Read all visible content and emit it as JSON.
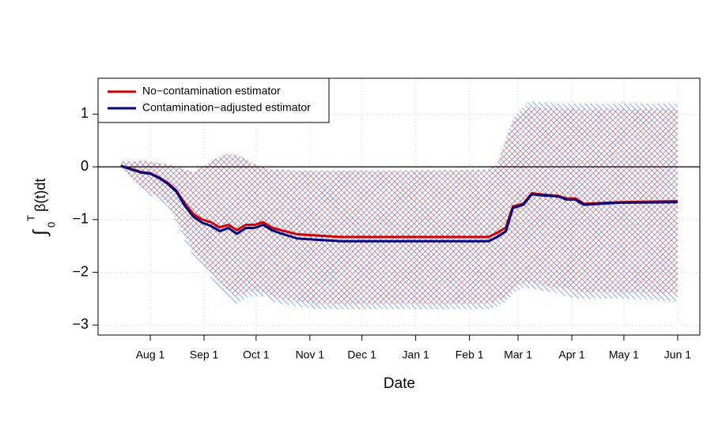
{
  "chart_data": {
    "type": "line",
    "xlabel": "Date",
    "ylabel": [
      "∫",
      "0",
      "T",
      "β(t)dt"
    ],
    "x": [
      -17,
      -10,
      -5,
      0,
      5,
      10,
      15,
      20,
      25,
      30,
      35,
      40,
      45,
      50,
      55,
      60,
      65,
      70,
      75,
      85,
      95,
      110,
      140,
      180,
      195,
      200,
      205,
      209,
      215,
      220,
      225,
      235,
      240,
      245,
      250,
      270,
      304
    ],
    "series": [
      {
        "name": "No−contamination estimator",
        "color": "#cc0000",
        "band_color": "#e03a3a",
        "values": [
          0.02,
          -0.05,
          -0.1,
          -0.12,
          -0.2,
          -0.3,
          -0.45,
          -0.7,
          -0.9,
          -1.0,
          -1.05,
          -1.15,
          -1.1,
          -1.2,
          -1.1,
          -1.1,
          -1.05,
          -1.15,
          -1.2,
          -1.28,
          -1.3,
          -1.33,
          -1.33,
          -1.33,
          -1.33,
          -1.25,
          -1.15,
          -0.75,
          -0.7,
          -0.5,
          -0.52,
          -0.55,
          -0.6,
          -0.6,
          -0.7,
          -0.67,
          -0.65
        ],
        "upper": [
          0.1,
          0.1,
          0.12,
          0.1,
          0.08,
          0.05,
          0.0,
          -0.05,
          -0.1,
          0.0,
          0.1,
          0.2,
          0.25,
          0.22,
          0.15,
          0.05,
          0.0,
          -0.05,
          -0.05,
          -0.07,
          -0.07,
          -0.07,
          -0.07,
          -0.06,
          -0.05,
          0.05,
          0.5,
          0.85,
          1.05,
          1.15,
          1.12,
          1.1,
          1.1,
          1.1,
          1.1,
          1.1,
          1.1
        ],
        "lower": [
          0.0,
          -0.25,
          -0.4,
          -0.5,
          -0.55,
          -0.7,
          -1.0,
          -1.3,
          -1.6,
          -1.8,
          -2.0,
          -2.2,
          -2.35,
          -2.45,
          -2.4,
          -2.35,
          -2.38,
          -2.45,
          -2.5,
          -2.55,
          -2.6,
          -2.6,
          -2.6,
          -2.6,
          -2.6,
          -2.55,
          -2.45,
          -2.3,
          -2.2,
          -2.2,
          -2.25,
          -2.3,
          -2.3,
          -2.35,
          -2.38,
          -2.38,
          -2.4
        ]
      },
      {
        "name": "Contamination−adjusted estimator",
        "color": "#000080",
        "band_color": "#3b78e0",
        "values": [
          0.02,
          -0.06,
          -0.11,
          -0.13,
          -0.21,
          -0.32,
          -0.47,
          -0.74,
          -0.95,
          -1.06,
          -1.12,
          -1.22,
          -1.16,
          -1.27,
          -1.16,
          -1.16,
          -1.1,
          -1.2,
          -1.26,
          -1.36,
          -1.38,
          -1.41,
          -1.41,
          -1.41,
          -1.41,
          -1.33,
          -1.22,
          -0.78,
          -0.72,
          -0.52,
          -0.54,
          -0.56,
          -0.62,
          -0.62,
          -0.72,
          -0.68,
          -0.67
        ],
        "upper": [
          0.1,
          0.1,
          0.12,
          0.1,
          0.08,
          0.05,
          0.0,
          -0.05,
          -0.1,
          0.0,
          0.1,
          0.2,
          0.25,
          0.22,
          0.15,
          0.05,
          0.0,
          -0.05,
          -0.05,
          -0.07,
          -0.07,
          -0.07,
          -0.07,
          -0.06,
          -0.05,
          0.05,
          0.55,
          0.9,
          1.15,
          1.25,
          1.22,
          1.2,
          1.2,
          1.2,
          1.2,
          1.2,
          1.2
        ],
        "lower": [
          0.0,
          -0.3,
          -0.45,
          -0.55,
          -0.6,
          -0.75,
          -1.05,
          -1.4,
          -1.7,
          -1.9,
          -2.1,
          -2.3,
          -2.5,
          -2.6,
          -2.5,
          -2.45,
          -2.45,
          -2.55,
          -2.6,
          -2.65,
          -2.7,
          -2.7,
          -2.7,
          -2.7,
          -2.7,
          -2.65,
          -2.55,
          -2.4,
          -2.3,
          -2.3,
          -2.35,
          -2.4,
          -2.45,
          -2.5,
          -2.5,
          -2.5,
          -2.55
        ]
      }
    ],
    "xlim": [
      -30.1,
      316.8
    ],
    "xticks": [
      {
        "value": 0,
        "label": "Aug 1"
      },
      {
        "value": 31,
        "label": "Sep 1"
      },
      {
        "value": 61,
        "label": "Oct 1"
      },
      {
        "value": 92,
        "label": "Nov 1"
      },
      {
        "value": 122,
        "label": "Dec 1"
      },
      {
        "value": 153,
        "label": "Jan 1"
      },
      {
        "value": 184,
        "label": "Feb 1"
      },
      {
        "value": 212,
        "label": "Mar 1"
      },
      {
        "value": 243,
        "label": "Apr 1"
      },
      {
        "value": 273,
        "label": "May 1"
      },
      {
        "value": 304,
        "label": "Jun 1"
      }
    ],
    "ylim": [
      -3.19,
      1.68
    ],
    "yticks": [
      {
        "value": 1,
        "label": "1"
      },
      {
        "value": 0,
        "label": "0"
      },
      {
        "value": -1,
        "label": "−1"
      },
      {
        "value": -2,
        "label": "−2"
      },
      {
        "value": -3,
        "label": "−3"
      }
    ],
    "hline": 0,
    "grid": true,
    "legend": "topleft"
  }
}
